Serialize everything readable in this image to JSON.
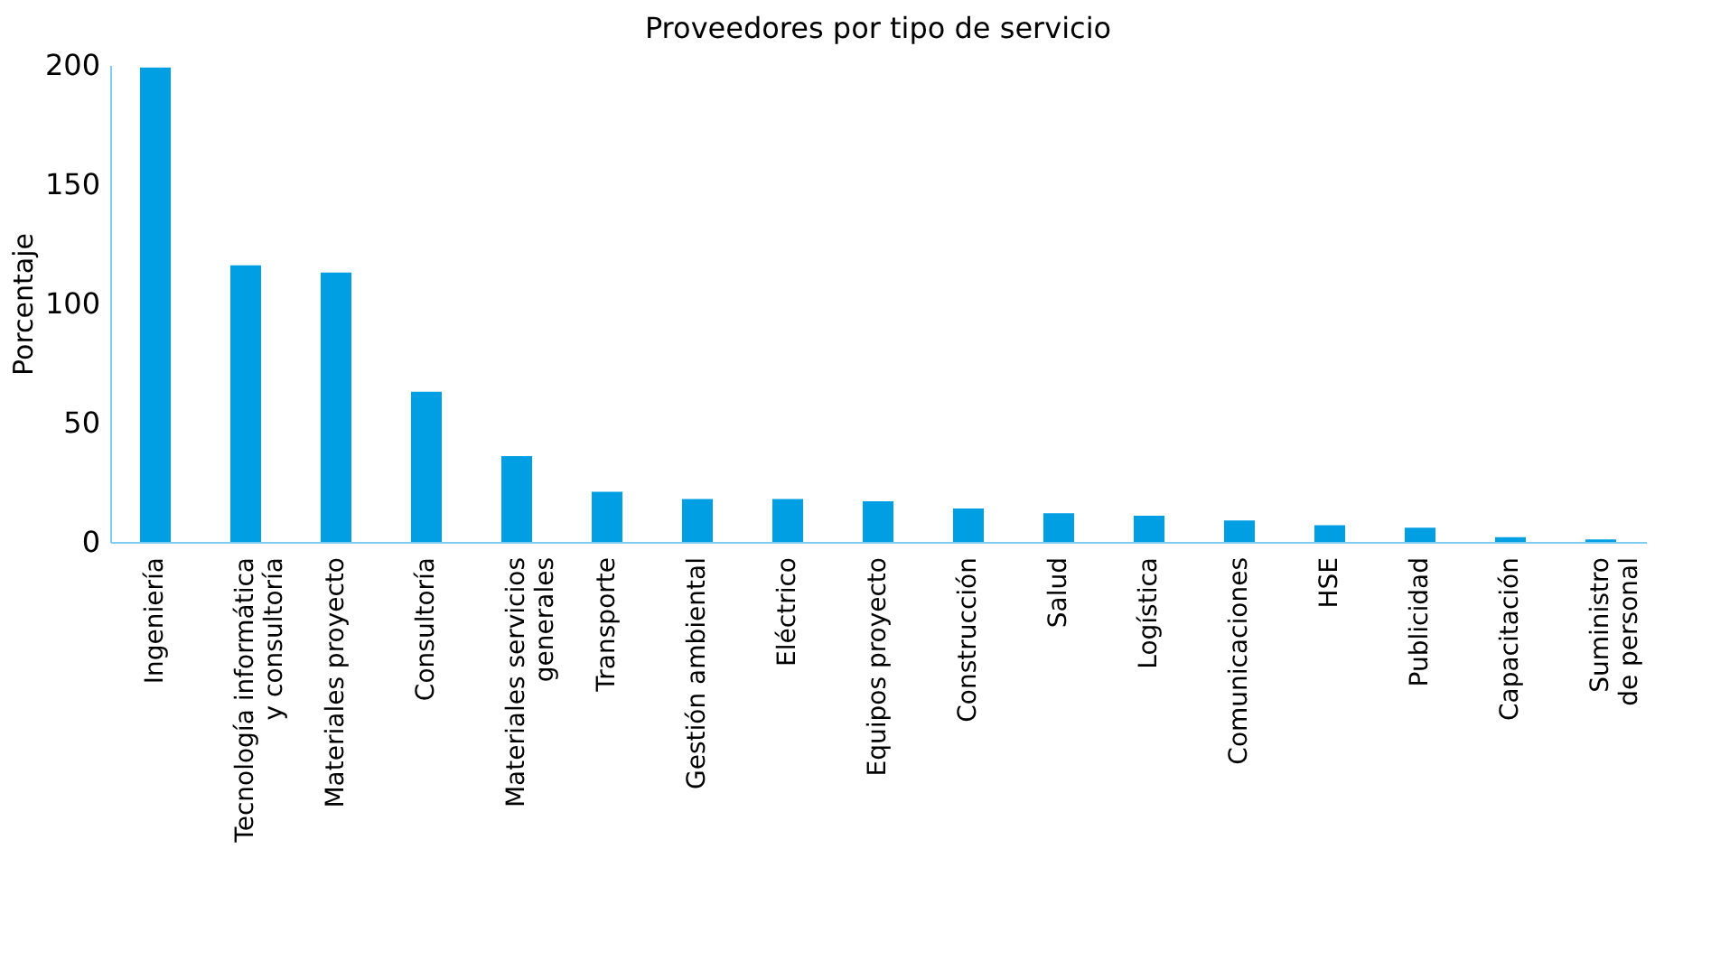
{
  "chart_data": {
    "type": "bar",
    "title": "Proveedores por tipo de servicio",
    "ylabel": "Porcentaje",
    "categories": [
      "Ingeniería",
      "Tecnología informática\ny consultoría",
      "Materiales proyecto",
      "Consultoría",
      "Materiales servicios\ngenerales",
      "Transporte",
      "Gestión ambiental",
      "Eléctrico",
      "Equipos proyecto",
      "Construcción",
      "Salud",
      "Logística",
      "Comunicaciones",
      "HSE",
      "Publicidad",
      "Capacitación",
      "Suministro\nde personal"
    ],
    "values": [
      199,
      116,
      113,
      63,
      36,
      21,
      18,
      18,
      17,
      14,
      12,
      11,
      9,
      7,
      6,
      2,
      1
    ],
    "color": "#009fe3",
    "ylim": [
      0,
      200
    ],
    "yticks": [
      0,
      50,
      100,
      150,
      200
    ],
    "grid": false
  }
}
